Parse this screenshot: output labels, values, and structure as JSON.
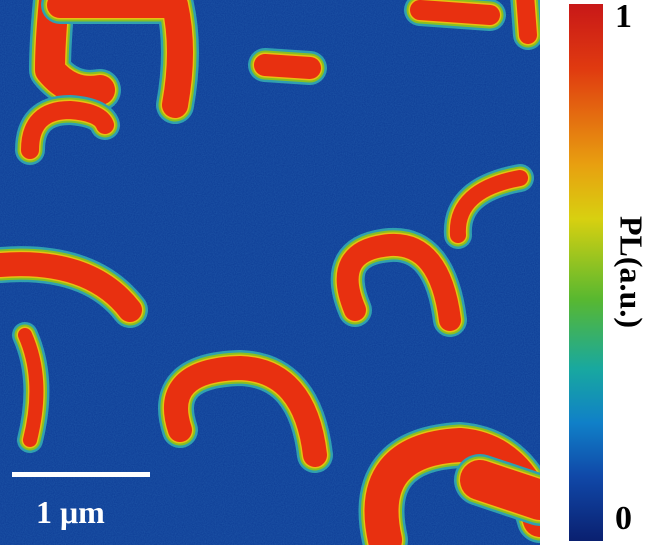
{
  "colorbar": {
    "max_label": "1",
    "min_label": "0",
    "title": "PL(a.u.)",
    "colors": [
      "#c81818",
      "#e8a010",
      "#d8d010",
      "#58b830",
      "#18a8a0",
      "#1048a8",
      "#0a2070"
    ]
  },
  "scale_bar": {
    "label": "1 μm"
  },
  "map": {
    "background_color": "#0c3a94",
    "high_color": "#e83010",
    "edge_color": "#8ac020"
  }
}
